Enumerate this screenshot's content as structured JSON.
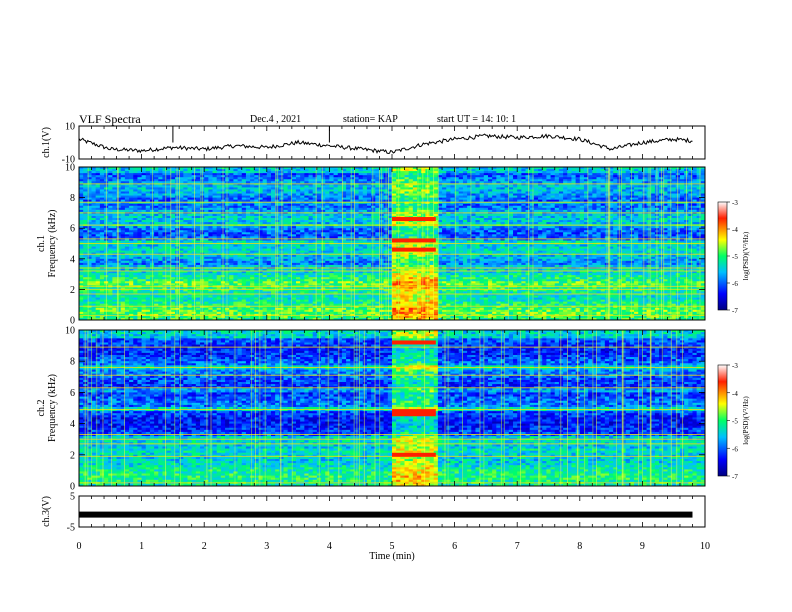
{
  "header": {
    "title": "VLF Spectra",
    "date": "Dec.4 , 2021",
    "station": "station= KAP",
    "start": "start  UT =  14: 10: 1"
  },
  "chart_data": [
    {
      "type": "line",
      "panel": "ch1-waveform",
      "ylabel": "ch.1(V)",
      "ylim": [
        -10,
        10
      ],
      "yticks": [
        "10",
        "-10"
      ],
      "x": [
        0,
        0.5,
        1,
        1.5,
        2,
        2.5,
        3,
        3.5,
        4,
        4.5,
        5,
        5.5,
        6,
        6.5,
        7,
        7.5,
        8,
        8.5,
        9,
        9.5,
        9.8
      ],
      "y": [
        2,
        -4,
        -5,
        -3,
        -4,
        -2,
        -3,
        0,
        -2,
        -4,
        -6,
        -1,
        2,
        4,
        3,
        4,
        2,
        -4,
        0,
        2,
        1
      ]
    },
    {
      "type": "heatmap",
      "panel": "ch1-spectrogram",
      "ylabel": "ch.1\nFrequency (kHz)",
      "ylim": [
        0,
        10
      ],
      "yticks": [
        "0",
        "2",
        "4",
        "6",
        "8",
        "10"
      ],
      "xlim": [
        0,
        10
      ],
      "colorbar": {
        "label": "log(PSD)(V²/Hz)",
        "ticks": [
          "-3",
          "-4",
          "-5",
          "-6",
          "-7"
        ],
        "range": [
          -7,
          -3
        ]
      },
      "burst_interval_min": [
        5.0,
        5.7
      ]
    },
    {
      "type": "heatmap",
      "panel": "ch2-spectrogram",
      "ylabel": "ch.2\nFrequency (kHz)",
      "ylim": [
        0,
        10
      ],
      "yticks": [
        "0",
        "2",
        "4",
        "6",
        "8",
        "10"
      ],
      "xlim": [
        0,
        10
      ],
      "colorbar": {
        "label": "log(PSD)(V²/Hz)",
        "ticks": [
          "-3",
          "-4",
          "-5",
          "-6",
          "-7"
        ],
        "range": [
          -7,
          -3
        ]
      },
      "burst_interval_min": [
        5.0,
        5.7
      ]
    },
    {
      "type": "line",
      "panel": "ch3-waveform",
      "ylabel": "ch.3(V)",
      "ylim": [
        -5,
        5
      ],
      "yticks": [
        "5",
        "-5"
      ],
      "x": [
        0,
        9.8
      ],
      "y": [
        -1,
        -1
      ]
    }
  ],
  "xaxis": {
    "label": "Time  (min)",
    "ticks": [
      "0",
      "1",
      "2",
      "3",
      "4",
      "5",
      "6",
      "7",
      "8",
      "9",
      "10"
    ],
    "range": [
      0,
      10
    ]
  }
}
